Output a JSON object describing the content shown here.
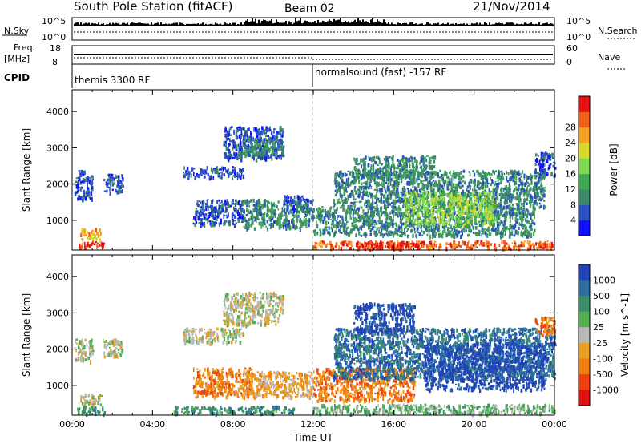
{
  "header": {
    "station": "South Pole Station (fitACF)",
    "beam": "Beam 02",
    "date": "21/Nov/2014"
  },
  "top_panels": {
    "nsky_label": "N.Sky",
    "nsky_ticks": [
      "10^5",
      "10^0"
    ],
    "nsearch_label": "N.Search",
    "nsearch_ticks": [
      "10^5",
      "10^0"
    ],
    "freq_label": "Freq.",
    "freq_unit": "[MHz]",
    "freq_ticks": [
      "18",
      "8"
    ],
    "nave_label": "Nave",
    "nave_ticks": [
      "60",
      "0"
    ],
    "cpid_label": "CPID",
    "cpid_segments": [
      {
        "label": "themis 3300 RF",
        "start_hour": 0,
        "end_hour": 12
      },
      {
        "label": "normalsound (fast) -157 RF",
        "start_hour": 12,
        "end_hour": 24
      }
    ]
  },
  "chart_data": [
    {
      "type": "heatmap",
      "title": "",
      "ylabel": "Slant Range [km]",
      "xlabel": "",
      "x_range_hours": [
        0,
        24
      ],
      "ylim": [
        180,
        4600
      ],
      "y_ticks": [
        1000,
        2000,
        3000,
        4000
      ],
      "colorbar": {
        "label": "Power [dB]",
        "ticks": [
          4,
          8,
          12,
          16,
          20,
          24,
          28
        ],
        "colors": [
          "#1010ff",
          "#2a4fc0",
          "#3d8a6a",
          "#3ea852",
          "#7ed850",
          "#d8d828",
          "#f5a020",
          "#f06018",
          "#e81010"
        ]
      },
      "clusters": [
        {
          "t": [
            0.3,
            1.6
          ],
          "r": [
            250,
            450
          ],
          "level": 8
        },
        {
          "t": [
            0.4,
            1.4
          ],
          "r": [
            500,
            800
          ],
          "level": 6
        },
        {
          "t": [
            0.1,
            1.0
          ],
          "r": [
            1600,
            2400
          ],
          "level": 1
        },
        {
          "t": [
            1.5,
            2.5
          ],
          "r": [
            1800,
            2300
          ],
          "level": 1
        },
        {
          "t": [
            5.5,
            8.5
          ],
          "r": [
            2200,
            2500
          ],
          "level": 1
        },
        {
          "t": [
            7.5,
            10.5
          ],
          "r": [
            2700,
            3600
          ],
          "level": 1
        },
        {
          "t": [
            8.5,
            10.5
          ],
          "r": [
            2800,
            3300
          ],
          "level": 2
        },
        {
          "t": [
            6.0,
            8.5
          ],
          "r": [
            900,
            1600
          ],
          "level": 1
        },
        {
          "t": [
            8.5,
            12.0
          ],
          "r": [
            800,
            1600
          ],
          "level": 2
        },
        {
          "t": [
            10.5,
            11.8
          ],
          "r": [
            1300,
            1700
          ],
          "level": 1
        },
        {
          "t": [
            12.0,
            24.0
          ],
          "r": [
            250,
            450
          ],
          "level": 7
        },
        {
          "t": [
            14.5,
            17.5
          ],
          "r": [
            250,
            450
          ],
          "level": 8
        },
        {
          "t": [
            12.0,
            23.0
          ],
          "r": [
            600,
            1400
          ],
          "level": 2
        },
        {
          "t": [
            13.0,
            23.5
          ],
          "r": [
            1400,
            2400
          ],
          "level": 2
        },
        {
          "t": [
            16.5,
            21.0
          ],
          "r": [
            900,
            1800
          ],
          "level": 4
        },
        {
          "t": [
            14.0,
            18.0
          ],
          "r": [
            2200,
            2800
          ],
          "level": 2
        },
        {
          "t": [
            23.0,
            24.0
          ],
          "r": [
            2200,
            2900
          ],
          "level": 1
        }
      ]
    },
    {
      "type": "heatmap",
      "title": "",
      "ylabel": "Slant Range [km]",
      "xlabel": "Time UT",
      "x_ticks": [
        "00:00",
        "04:00",
        "08:00",
        "12:00",
        "16:00",
        "20:00",
        "00:00"
      ],
      "x_range_hours": [
        0,
        24
      ],
      "ylim": [
        180,
        4600
      ],
      "y_ticks": [
        1000,
        2000,
        3000,
        4000
      ],
      "colorbar": {
        "label": "Velocity [m s^-1]",
        "ticks": [
          "1000",
          "500",
          "100",
          "25",
          "-25",
          "-100",
          "-500",
          "-1000"
        ],
        "colors": [
          "#2244bb",
          "#2c6ea0",
          "#3a8f6a",
          "#52b052",
          "#b8b8b8",
          "#e8a020",
          "#f08010",
          "#f04010",
          "#e01010"
        ]
      },
      "clusters": [
        {
          "t": [
            0.2,
            1.6
          ],
          "r": [
            250,
            450
          ],
          "level": 2
        },
        {
          "t": [
            0.4,
            1.4
          ],
          "r": [
            500,
            800
          ],
          "level": 4
        },
        {
          "t": [
            0.1,
            1.0
          ],
          "r": [
            1700,
            2300
          ],
          "level": 4
        },
        {
          "t": [
            1.5,
            2.5
          ],
          "r": [
            1800,
            2300
          ],
          "level": 4
        },
        {
          "t": [
            5.5,
            8.5
          ],
          "r": [
            2200,
            2600
          ],
          "level": 4
        },
        {
          "t": [
            7.5,
            10.5
          ],
          "r": [
            2700,
            3600
          ],
          "level": 4
        },
        {
          "t": [
            6.0,
            9.0
          ],
          "r": [
            700,
            1500
          ],
          "level": 6
        },
        {
          "t": [
            8.5,
            12.0
          ],
          "r": [
            700,
            1400
          ],
          "level": 5
        },
        {
          "t": [
            5.0,
            11.0
          ],
          "r": [
            250,
            450
          ],
          "level": 2
        },
        {
          "t": [
            12.0,
            24.0
          ],
          "r": [
            250,
            500
          ],
          "level": 3
        },
        {
          "t": [
            12.0,
            17.0
          ],
          "r": [
            600,
            1500
          ],
          "level": 6
        },
        {
          "t": [
            13.0,
            24.0
          ],
          "r": [
            1200,
            2600
          ],
          "level": 1
        },
        {
          "t": [
            17.5,
            23.5
          ],
          "r": [
            900,
            2200
          ],
          "level": 0
        },
        {
          "t": [
            14.0,
            17.0
          ],
          "r": [
            2500,
            3300
          ],
          "level": 0
        },
        {
          "t": [
            23.0,
            24.0
          ],
          "r": [
            2400,
            2900
          ],
          "level": 6
        }
      ]
    }
  ]
}
